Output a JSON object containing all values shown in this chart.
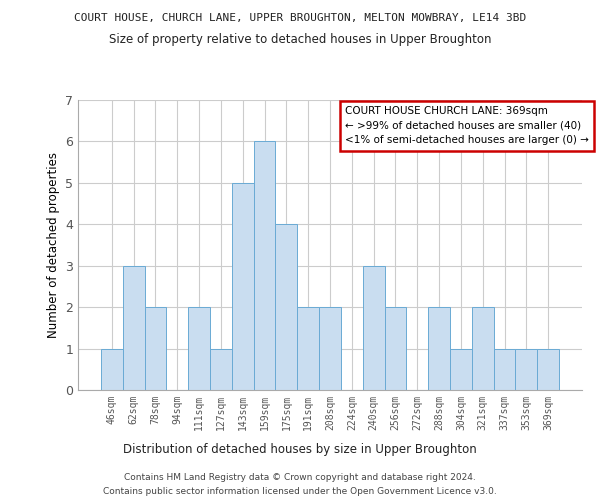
{
  "title": "COURT HOUSE, CHURCH LANE, UPPER BROUGHTON, MELTON MOWBRAY, LE14 3BD",
  "subtitle": "Size of property relative to detached houses in Upper Broughton",
  "xlabel": "Distribution of detached houses by size in Upper Broughton",
  "ylabel": "Number of detached properties",
  "categories": [
    "46sqm",
    "62sqm",
    "78sqm",
    "94sqm",
    "111sqm",
    "127sqm",
    "143sqm",
    "159sqm",
    "175sqm",
    "191sqm",
    "208sqm",
    "224sqm",
    "240sqm",
    "256sqm",
    "272sqm",
    "288sqm",
    "304sqm",
    "321sqm",
    "337sqm",
    "353sqm",
    "369sqm"
  ],
  "values": [
    1,
    3,
    2,
    0,
    2,
    1,
    5,
    6,
    4,
    2,
    2,
    0,
    3,
    2,
    0,
    2,
    1,
    2,
    1,
    1,
    1
  ],
  "bar_color": "#c9ddf0",
  "bar_edge_color": "#6aaad4",
  "grid_color": "#cccccc",
  "background_color": "#ffffff",
  "annotation_box_edge_color": "#cc0000",
  "annotation_lines": [
    "COURT HOUSE CHURCH LANE: 369sqm",
    "← >99% of detached houses are smaller (40)",
    "<1% of semi-detached houses are larger (0) →"
  ],
  "ylim": [
    0,
    7
  ],
  "yticks": [
    0,
    1,
    2,
    3,
    4,
    5,
    6,
    7
  ],
  "footer_line1": "Contains HM Land Registry data © Crown copyright and database right 2024.",
  "footer_line2": "Contains public sector information licensed under the Open Government Licence v3.0."
}
